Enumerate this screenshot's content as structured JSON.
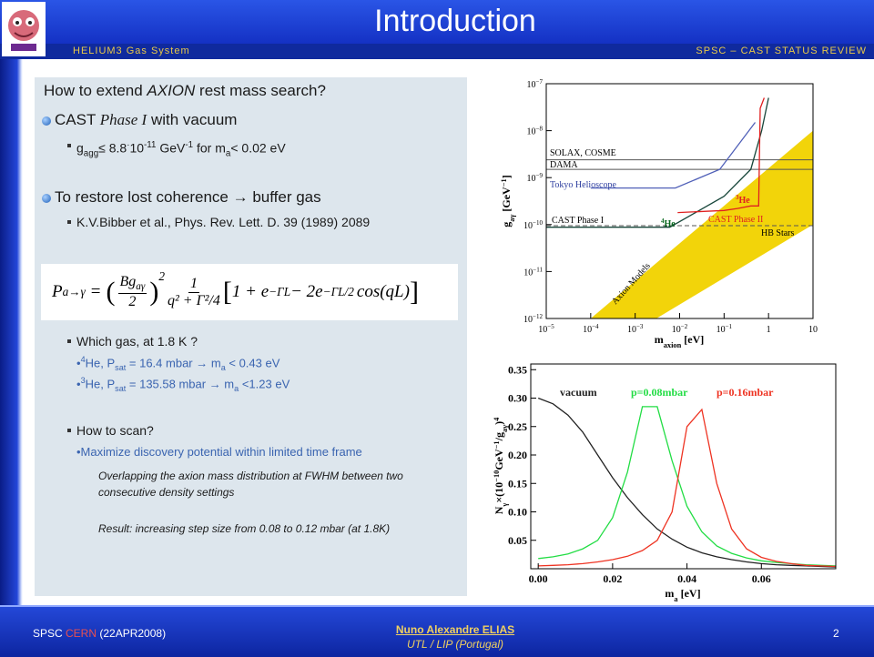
{
  "header": {
    "title": "Introduction",
    "left": "HELIUM3 Gas System",
    "right": "SPSC – CAST STATUS REVIEW"
  },
  "footer": {
    "left_1": "SPSC ",
    "left_2": "CERN",
    "left_3": " (22APR2008)",
    "author": "Nuno Alexandre ELIAS",
    "affiliation": "UTL / LIP (Portugal)",
    "page": "2"
  },
  "content": {
    "items": [
      {
        "level": "heading",
        "runs": [
          {
            "text": "How to extend "
          },
          {
            "text": "AXION",
            "style": "i"
          },
          {
            "text": " rest mass search?"
          }
        ]
      },
      {
        "level": "l1",
        "runs": [
          {
            "text": "CAST "
          },
          {
            "text": "Phase I",
            "style": "serif"
          },
          {
            "text": " with vacuum"
          }
        ]
      },
      {
        "level": "l2",
        "runs": [
          {
            "text": "g"
          },
          {
            "text": "agg",
            "style": "sub"
          },
          {
            "text": "≤ 8.8"
          },
          {
            "text": "·",
            "style": "sup"
          },
          {
            "text": "10"
          },
          {
            "text": "-11",
            "style": "sup"
          },
          {
            "text": " GeV"
          },
          {
            "text": "-1",
            "style": "sup"
          },
          {
            "text": " for m"
          },
          {
            "text": "a",
            "style": "sub"
          },
          {
            "text": "< 0.02 eV"
          }
        ]
      },
      {
        "level": "l1",
        "runs": [
          {
            "text": "To restore lost coherence → buffer gas"
          }
        ]
      },
      {
        "level": "l2",
        "runs": [
          {
            "text": "K.V.Bibber et al., Phys. Rev. Lett. D. 39 (1989) 2089"
          }
        ]
      },
      {
        "level": "l2",
        "runs": [
          {
            "text": "Which gas, at 1.8 K ?"
          }
        ]
      },
      {
        "level": "l3",
        "runs": [
          {
            "text": "•"
          },
          {
            "text": "4",
            "style": "sup"
          },
          {
            "text": "He, P"
          },
          {
            "text": "sat",
            "style": "sub"
          },
          {
            "text": " = 16.4 mbar → m"
          },
          {
            "text": "a",
            "style": "sub"
          },
          {
            "text": " < 0.43 eV"
          }
        ]
      },
      {
        "level": "l3",
        "runs": [
          {
            "text": "•"
          },
          {
            "text": "3",
            "style": "sup"
          },
          {
            "text": "He, P"
          },
          {
            "text": "sat",
            "style": "sub"
          },
          {
            "text": " = 135.58 mbar → m"
          },
          {
            "text": "a",
            "style": "sub"
          },
          {
            "text": " <1.23 eV"
          }
        ]
      },
      {
        "level": "l2",
        "runs": [
          {
            "text": "How to scan?"
          }
        ]
      },
      {
        "level": "l3",
        "runs": [
          {
            "text": "•Maximize discovery potential within limited time frame"
          }
        ]
      },
      {
        "level": "note",
        "runs": [
          {
            "text": "Overlapping the axion mass distribution at FWHM between two consecutive density settings"
          }
        ]
      },
      {
        "level": "note",
        "runs": [
          {
            "text": "Result: increasing step size from 0.08 to 0.12 mbar (at 1.8K)"
          }
        ]
      }
    ]
  },
  "formula": {
    "lhs": "P",
    "lhs_sub": "a→γ",
    "eq": "=",
    "lp": "(",
    "num1": "Bg",
    "num1_sub": "aγ",
    "den1": "2",
    "rp": ")",
    "pow": "2",
    "num2": "1",
    "den2": "q² + Γ²/4",
    "lb": "[",
    "t1": "1 + e",
    "e1": "−ΓL",
    "t2": " − 2e",
    "e2": "−ΓL/2",
    "t3": "cos(qL)",
    "rb": "]"
  },
  "figure_top": {
    "type": "line",
    "log": true,
    "xlabel": [
      {
        "text": "m"
      },
      {
        "text": "axion",
        "style": "sub"
      },
      {
        "text": " [eV]"
      }
    ],
    "ylabel": [
      {
        "text": "g"
      },
      {
        "text": "aγ",
        "style": "sub"
      },
      {
        "text": " [GeV"
      },
      {
        "text": "−1",
        "style": "sup"
      },
      {
        "text": "]"
      }
    ],
    "xlim": [
      1e-05,
      10
    ],
    "ylim": [
      1e-12,
      1e-07
    ],
    "xticks": [
      {
        "value": 1e-05,
        "label": "10",
        "exp": "−5"
      },
      {
        "value": 0.0001,
        "label": "10",
        "exp": "−4"
      },
      {
        "value": 0.001,
        "label": "10",
        "exp": "−3"
      },
      {
        "value": 0.01,
        "label": "10",
        "exp": "−2"
      },
      {
        "value": 0.1,
        "label": "10",
        "exp": "−1"
      },
      1,
      10
    ],
    "yticks": [
      {
        "value": 1e-12,
        "label": "10",
        "exp": "−12"
      },
      {
        "value": 1e-11,
        "label": "10",
        "exp": "−11"
      },
      {
        "value": 1e-10,
        "label": "10",
        "exp": "−10"
      },
      {
        "value": 1e-09,
        "label": "10",
        "exp": "−9"
      },
      {
        "value": 1e-08,
        "label": "10",
        "exp": "−8"
      },
      {
        "value": 1e-07,
        "label": "10",
        "exp": "−7"
      }
    ],
    "band": {
      "name": "Axion Models",
      "color": "#f2d40a",
      "x": [
        0.0001,
        0.003,
        10,
        10
      ],
      "values": [
        1e-12,
        1e-12,
        1e-10,
        1e-08
      ]
    },
    "reference_lines": [
      {
        "name": "SOLAX, COSME",
        "value": 2.4e-09,
        "color": "#555555"
      },
      {
        "name": "DAMA",
        "value": 1.5e-09,
        "color": "#555555"
      },
      {
        "name": "HB Stars",
        "value": 9.5e-11,
        "color": "#555555",
        "dashed": true
      }
    ],
    "series": [
      {
        "name": "Tokyo Helioscope",
        "color": "#5060b8",
        "x": [
          0.0001,
          0.008,
          0.08,
          0.5
        ],
        "values": [
          6e-10,
          6e-10,
          1.5e-09,
          1.5e-08
        ]
      },
      {
        "name": "CAST Phase I",
        "color": "#17463a",
        "x": [
          1e-05,
          0.006,
          0.1,
          0.4,
          0.7,
          1
        ],
        "values": [
          8.8e-11,
          8.8e-11,
          4e-10,
          1.5e-09,
          1e-08,
          5e-08
        ]
      },
      {
        "name": "CAST Phase II",
        "color": "#e02020",
        "x": [
          0.009,
          0.1,
          0.2,
          0.4,
          0.6,
          0.65,
          0.8
        ],
        "values": [
          1.8e-10,
          2e-10,
          2.2e-10,
          2.5e-10,
          2.5e-10,
          3e-08,
          5e-08
        ]
      }
    ],
    "annotations": [
      {
        "text": "4",
        "style": "sup"
      },
      {
        "text": "He"
      },
      {
        "text": "3",
        "style": "sup"
      },
      {
        "text": "He"
      }
    ]
  },
  "figure_bottom": {
    "type": "line",
    "xlabel": [
      {
        "text": "m"
      },
      {
        "text": "a",
        "style": "sub"
      },
      {
        "text": " [eV]"
      }
    ],
    "ylabel": [
      {
        "text": "N"
      },
      {
        "text": "γ",
        "style": "sub"
      },
      {
        "text": "×(10"
      },
      {
        "text": "−10",
        "style": "sup"
      },
      {
        "text": "GeV"
      },
      {
        "text": "−1",
        "style": "sup"
      },
      {
        "text": "/g"
      },
      {
        "text": "aγ",
        "style": "sub"
      },
      {
        "text": ")"
      },
      {
        "text": "4",
        "style": "sup"
      }
    ],
    "xlim": [
      -0.002,
      0.08
    ],
    "ylim": [
      0,
      0.36
    ],
    "xticks": [
      {
        "value": 0,
        "label": "0.00"
      },
      0.02,
      0.04,
      0.06
    ],
    "yticks": [
      0.05,
      {
        "value": 0.1,
        "label": "0.10"
      },
      0.15,
      {
        "value": 0.2,
        "label": "0.20"
      },
      0.25,
      {
        "value": 0.3,
        "label": "0.30"
      },
      0.35
    ],
    "x": [
      0,
      0.004,
      0.008,
      0.012,
      0.016,
      0.02,
      0.024,
      0.028,
      0.032,
      0.036,
      0.04,
      0.044,
      0.048,
      0.052,
      0.056,
      0.06,
      0.064,
      0.068,
      0.072,
      0.076,
      0.08
    ],
    "series": [
      {
        "name": "vacuum",
        "color": "#222222",
        "values": [
          0.3,
          0.29,
          0.27,
          0.24,
          0.2,
          0.16,
          0.125,
          0.095,
          0.07,
          0.052,
          0.038,
          0.028,
          0.021,
          0.016,
          0.012,
          0.009,
          0.007,
          0.006,
          0.005,
          0.004,
          0.003
        ]
      },
      {
        "name": "p=0.08mbar",
        "color": "#22dd44",
        "values": [
          0.018,
          0.021,
          0.026,
          0.035,
          0.05,
          0.09,
          0.17,
          0.285,
          0.285,
          0.19,
          0.11,
          0.065,
          0.04,
          0.027,
          0.019,
          0.014,
          0.011,
          0.009,
          0.007,
          0.006,
          0.005
        ]
      },
      {
        "name": "p=0.16mbar",
        "color": "#ee3322",
        "values": [
          0.005,
          0.006,
          0.007,
          0.009,
          0.012,
          0.016,
          0.022,
          0.032,
          0.05,
          0.1,
          0.25,
          0.28,
          0.15,
          0.07,
          0.035,
          0.02,
          0.013,
          0.009,
          0.006,
          0.005,
          0.004
        ]
      }
    ]
  }
}
